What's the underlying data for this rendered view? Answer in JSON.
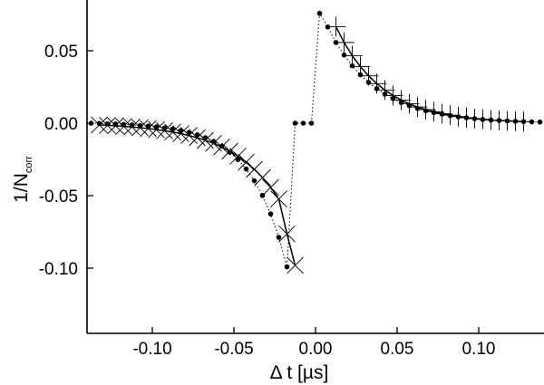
{
  "chart_data": {
    "type": "scatter",
    "title": "",
    "xlabel": "Δ t [µs]",
    "ylabel_main": "1/N",
    "ylabel_sub": "corr",
    "xlim": [
      -0.14,
      0.14
    ],
    "ylim": [
      -0.145,
      0.085
    ],
    "x_ticks": [
      -0.1,
      -0.05,
      0.0,
      0.05,
      0.1
    ],
    "x_tick_labels": [
      "-0.10",
      "-0.05",
      "0.00",
      "0.05",
      "0.10"
    ],
    "y_ticks": [
      -0.1,
      -0.05,
      0.0,
      0.05
    ],
    "y_tick_labels": [
      "-0.10",
      "-0.05",
      "0.00",
      "0.05"
    ],
    "grid": false,
    "legend": "none",
    "data_points": {
      "marker": "filled-circle",
      "line": "dotted",
      "x": [
        -0.1375,
        -0.1325,
        -0.1275,
        -0.1225,
        -0.1175,
        -0.1125,
        -0.1075,
        -0.1025,
        -0.0975,
        -0.0925,
        -0.0875,
        -0.0825,
        -0.0775,
        -0.0725,
        -0.0675,
        -0.0625,
        -0.0575,
        -0.0525,
        -0.0475,
        -0.0425,
        -0.0375,
        -0.0325,
        -0.0275,
        -0.0225,
        -0.0175,
        -0.0125,
        -0.0075,
        -0.0025,
        0.0025,
        0.0075,
        0.0125,
        0.0175,
        0.0225,
        0.0275,
        0.0325,
        0.0375,
        0.0425,
        0.0475,
        0.0525,
        0.0575,
        0.0625,
        0.0675,
        0.0725,
        0.0775,
        0.0825,
        0.0875,
        0.0925,
        0.0975,
        0.1025,
        0.1075,
        0.1125,
        0.1175,
        0.1225,
        0.1275,
        0.1325,
        0.1375
      ],
      "y": [
        0.0,
        -0.0002,
        -0.0004,
        -0.0006,
        -0.0009,
        -0.0012,
        -0.0016,
        -0.002,
        -0.0025,
        -0.0032,
        -0.004,
        -0.0051,
        -0.0064,
        -0.008,
        -0.0101,
        -0.0127,
        -0.0159,
        -0.02,
        -0.0251,
        -0.0316,
        -0.0397,
        -0.0499,
        -0.0626,
        -0.0788,
        -0.0991,
        0.0,
        0.0,
        0.0,
        0.0758,
        0.0664,
        0.0557,
        0.047,
        0.0396,
        0.0334,
        0.0282,
        0.0238,
        0.0201,
        0.017,
        0.0143,
        0.0121,
        0.0102,
        0.0086,
        0.0073,
        0.0062,
        0.0052,
        0.0044,
        0.0037,
        0.0031,
        0.0026,
        0.0022,
        0.0019,
        0.0016,
        0.0013,
        0.0011,
        0.0009,
        0.0008
      ]
    },
    "fit_negative": {
      "marker": "x-cross",
      "line": "solid",
      "x": [
        -0.1325,
        -0.1275,
        -0.1225,
        -0.1175,
        -0.1125,
        -0.1075,
        -0.1025,
        -0.0975,
        -0.0925,
        -0.0875,
        -0.0825,
        -0.0775,
        -0.0725,
        -0.0675,
        -0.0625,
        -0.0575,
        -0.0525,
        -0.0475,
        -0.0425,
        -0.0375,
        -0.0325,
        -0.0275,
        -0.0225,
        -0.0175,
        -0.0125
      ],
      "y": [
        -0.0012,
        -0.0015,
        -0.0018,
        -0.0022,
        -0.0026,
        -0.0031,
        -0.0037,
        -0.0044,
        -0.0052,
        -0.0061,
        -0.0072,
        -0.0085,
        -0.01,
        -0.0118,
        -0.0139,
        -0.0164,
        -0.0193,
        -0.0228,
        -0.0269,
        -0.0318,
        -0.0375,
        -0.0443,
        -0.0523,
        -0.0764,
        -0.0981
      ]
    },
    "fit_positive": {
      "marker": "plus",
      "line": "solid",
      "x": [
        0.0125,
        0.0175,
        0.0225,
        0.0275,
        0.0325,
        0.0375,
        0.0425,
        0.0475,
        0.0525,
        0.0575,
        0.0625,
        0.0675,
        0.0725,
        0.0775,
        0.0825,
        0.0875,
        0.0925,
        0.0975,
        0.1025,
        0.1075,
        0.1125,
        0.1175,
        0.1225,
        0.1275
      ],
      "y": [
        0.0666,
        0.0557,
        0.0466,
        0.039,
        0.0327,
        0.0273,
        0.0229,
        0.0191,
        0.016,
        0.0134,
        0.0112,
        0.0094,
        0.0079,
        0.0066,
        0.0055,
        0.0046,
        0.0038,
        0.0032,
        0.0027,
        0.0022,
        0.0019,
        0.0016,
        0.0013,
        0.0011
      ]
    }
  }
}
